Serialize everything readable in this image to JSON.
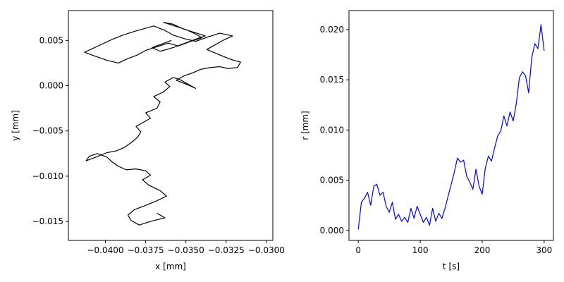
{
  "chart_data": [
    {
      "type": "line",
      "title": "",
      "xlabel": "x [mm]",
      "ylabel": "y [mm]",
      "xlim": [
        -0.0423,
        -0.0296
      ],
      "ylim": [
        -0.0171,
        0.0083
      ],
      "xticks": [
        -0.04,
        -0.0375,
        -0.035,
        -0.0325,
        -0.03
      ],
      "xtick_labels": [
        "−0.0400",
        "−0.0375",
        "−0.0350",
        "−0.0325",
        "−0.0300"
      ],
      "yticks": [
        -0.015,
        -0.01,
        -0.005,
        0.0,
        0.005
      ],
      "ytick_labels": [
        "−0.015",
        "−0.010",
        "−0.005",
        "0.000",
        "0.005"
      ],
      "grid": false,
      "series": [
        {
          "color": "#000000",
          "x": [
            -0.0368,
            -0.0363,
            -0.0372,
            -0.0379,
            -0.0384,
            -0.0386,
            -0.0382,
            -0.0376,
            -0.0369,
            -0.0362,
            -0.0366,
            -0.0373,
            -0.0377,
            -0.0372,
            -0.0375,
            -0.0381,
            -0.0387,
            -0.0392,
            -0.0396,
            -0.0399,
            -0.0405,
            -0.041,
            -0.0412,
            -0.0406,
            -0.0399,
            -0.0393,
            -0.0388,
            -0.0384,
            -0.038,
            -0.0378,
            -0.0381,
            -0.0376,
            -0.0372,
            -0.0375,
            -0.0368,
            -0.0366,
            -0.037,
            -0.0364,
            -0.036,
            -0.0363,
            -0.0358,
            -0.0354,
            -0.0349,
            -0.0344,
            -0.0349,
            -0.0356,
            -0.0351,
            -0.0346,
            -0.0341,
            -0.0335,
            -0.0329,
            -0.0324,
            -0.0318,
            -0.0316,
            -0.0322,
            -0.0329,
            -0.0337,
            -0.0333,
            -0.0327,
            -0.0321,
            -0.0329,
            -0.0336,
            -0.0344,
            -0.0351,
            -0.0358,
            -0.0363,
            -0.037,
            -0.0376,
            -0.0382,
            -0.0389,
            -0.0396,
            -0.0402,
            -0.0408,
            -0.0413,
            -0.0407,
            -0.0399,
            -0.0392,
            -0.0386,
            -0.038,
            -0.0375,
            -0.0368,
            -0.0361,
            -0.0355,
            -0.0349,
            -0.0343,
            -0.0338,
            -0.0345,
            -0.0352,
            -0.0358,
            -0.0364,
            -0.0357,
            -0.035,
            -0.0345,
            -0.034,
            -0.0347,
            -0.0353,
            -0.036,
            -0.0366,
            -0.0371,
            -0.0365,
            -0.0359
          ],
          "y": [
            -0.0141,
            -0.0146,
            -0.015,
            -0.0154,
            -0.0149,
            -0.0143,
            -0.0137,
            -0.0133,
            -0.0128,
            -0.0122,
            -0.0116,
            -0.011,
            -0.0104,
            -0.0099,
            -0.0094,
            -0.0092,
            -0.0093,
            -0.0089,
            -0.0084,
            -0.0079,
            -0.0075,
            -0.0078,
            -0.0083,
            -0.0079,
            -0.0074,
            -0.0072,
            -0.0068,
            -0.0063,
            -0.0057,
            -0.0051,
            -0.0045,
            -0.004,
            -0.0036,
            -0.003,
            -0.0025,
            -0.0018,
            -0.0012,
            -0.0007,
            -0.0001,
            0.0004,
            0.0009,
            0.0007,
            0.0002,
            -0.0003,
            0.0001,
            0.0006,
            0.0011,
            0.0014,
            0.0018,
            0.002,
            0.0021,
            0.0019,
            0.002,
            0.0026,
            0.0029,
            0.0034,
            0.004,
            0.0044,
            0.005,
            0.0055,
            0.0058,
            0.0054,
            0.0049,
            0.0052,
            0.0056,
            0.0061,
            0.0066,
            0.0063,
            0.006,
            0.0056,
            0.0051,
            0.0046,
            0.0041,
            0.0037,
            0.0033,
            0.0028,
            0.0025,
            0.003,
            0.0034,
            0.0039,
            0.0043,
            0.0047,
            0.0044,
            0.0048,
            0.0052,
            0.0055,
            0.0059,
            0.0063,
            0.0068,
            0.007,
            0.0066,
            0.0062,
            0.0058,
            0.0053,
            0.0049,
            0.0045,
            0.0041,
            0.0038,
            0.0042,
            0.0046,
            0.005
          ]
        }
      ]
    },
    {
      "type": "line",
      "title": "",
      "xlabel": "t [s]",
      "ylabel": "r [mm]",
      "xlim": [
        -15,
        315
      ],
      "ylim": [
        -0.001,
        0.0219
      ],
      "xticks": [
        0,
        100,
        200,
        300
      ],
      "xtick_labels": [
        "0",
        "100",
        "200",
        "300"
      ],
      "yticks": [
        0.0,
        0.005,
        0.01,
        0.015,
        0.02
      ],
      "ytick_labels": [
        "0.000",
        "0.005",
        "0.010",
        "0.015",
        "0.020"
      ],
      "grid": false,
      "series": [
        {
          "color": "#0000ff",
          "x": [
            0,
            5,
            10,
            15,
            20,
            25,
            30,
            35,
            40,
            45,
            50,
            55,
            60,
            65,
            70,
            75,
            80,
            85,
            90,
            95,
            100,
            105,
            110,
            115,
            120,
            125,
            130,
            135,
            140,
            145,
            150,
            155,
            160,
            165,
            170,
            175,
            180,
            185,
            190,
            195,
            200,
            205,
            210,
            215,
            220,
            225,
            230,
            235,
            240,
            245,
            250,
            255,
            260,
            265,
            270,
            275,
            280,
            285,
            290,
            295,
            300
          ],
          "y": [
            0.0001,
            0.0028,
            0.0032,
            0.0038,
            0.0025,
            0.0044,
            0.0046,
            0.0035,
            0.0038,
            0.0024,
            0.0018,
            0.0028,
            0.0011,
            0.0016,
            0.0009,
            0.0013,
            0.0008,
            0.0022,
            0.0012,
            0.0024,
            0.0016,
            0.0008,
            0.0013,
            0.0005,
            0.0022,
            0.0009,
            0.0017,
            0.0012,
            0.0022,
            0.0034,
            0.0046,
            0.0058,
            0.0072,
            0.0068,
            0.007,
            0.0054,
            0.0048,
            0.0041,
            0.0061,
            0.0044,
            0.0036,
            0.0062,
            0.0074,
            0.0069,
            0.0082,
            0.0094,
            0.0099,
            0.0114,
            0.0104,
            0.0118,
            0.0109,
            0.0126,
            0.0152,
            0.0158,
            0.0154,
            0.0137,
            0.0172,
            0.0186,
            0.0181,
            0.0205,
            0.0179
          ]
        }
      ]
    }
  ]
}
